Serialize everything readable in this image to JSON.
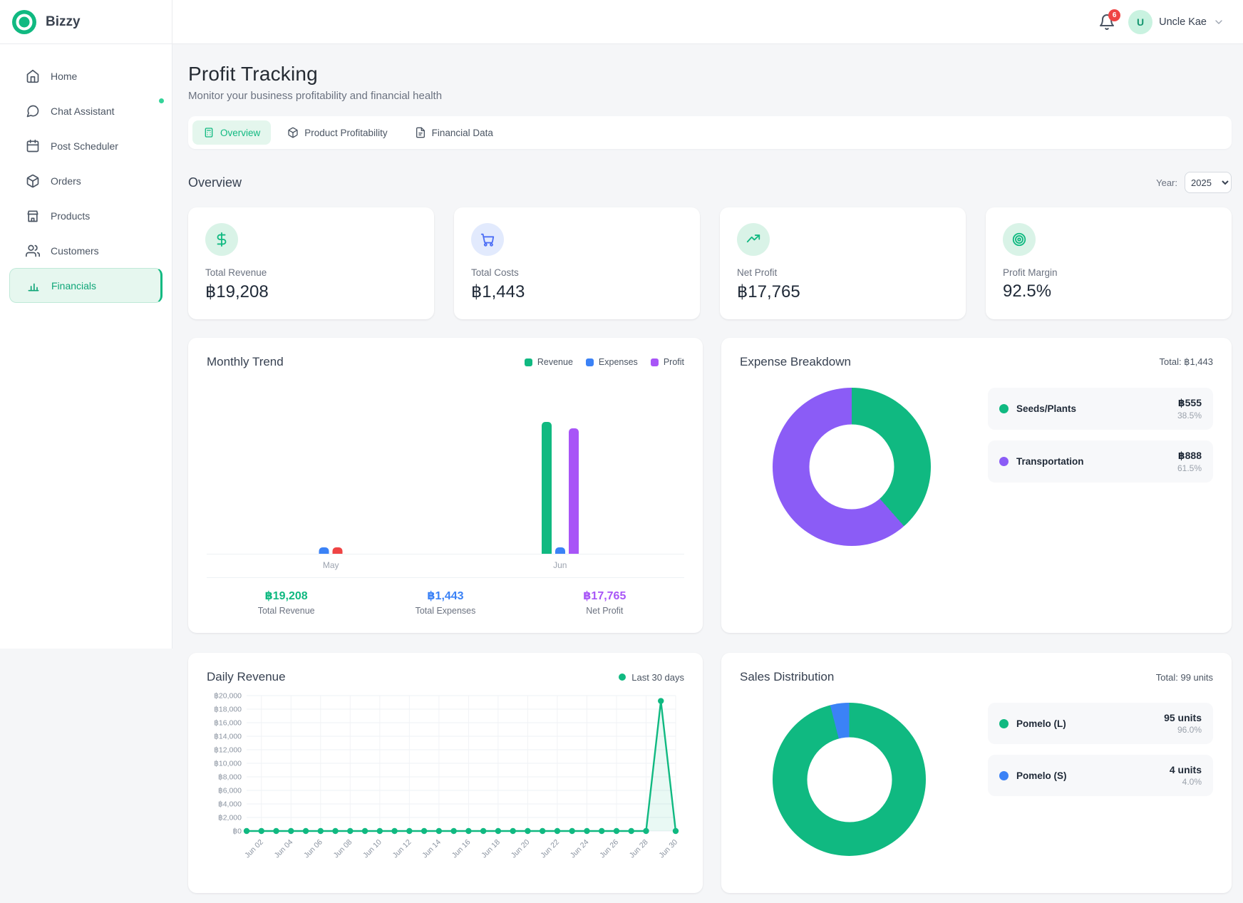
{
  "brand": {
    "name": "Bizzy"
  },
  "topbar": {
    "notification_count": "6",
    "user_initial": "U",
    "user_name": "Uncle Kae"
  },
  "sidebar": {
    "items": [
      {
        "label": "Home",
        "icon": "home-icon"
      },
      {
        "label": "Chat Assistant",
        "icon": "chat-icon",
        "status_dot": true
      },
      {
        "label": "Post Scheduler",
        "icon": "calendar-icon"
      },
      {
        "label": "Orders",
        "icon": "package-icon"
      },
      {
        "label": "Products",
        "icon": "store-icon"
      },
      {
        "label": "Customers",
        "icon": "users-icon"
      },
      {
        "label": "Financials",
        "icon": "bar-chart-icon",
        "active": true
      }
    ]
  },
  "page": {
    "title": "Profit Tracking",
    "subtitle": "Monitor your business profitability and financial health"
  },
  "tabs": [
    {
      "label": "Overview",
      "active": true
    },
    {
      "label": "Product Profitability",
      "active": false
    },
    {
      "label": "Financial Data",
      "active": false
    }
  ],
  "section": {
    "heading": "Overview",
    "year_label": "Year:",
    "year_value": "2025"
  },
  "stats": [
    {
      "label": "Total Revenue",
      "value": "฿19,208",
      "icon": "dollar-icon",
      "tint": "green"
    },
    {
      "label": "Total Costs",
      "value": "฿1,443",
      "icon": "cart-icon",
      "tint": "blue"
    },
    {
      "label": "Net Profit",
      "value": "฿17,765",
      "icon": "trending-up-icon",
      "tint": "green"
    },
    {
      "label": "Profit Margin",
      "value": "92.5%",
      "icon": "target-icon",
      "tint": "green"
    }
  ],
  "colors": {
    "primary_green": "#10b981",
    "blue": "#3b82f6",
    "purple": "#a855f7",
    "donut_purple": "#8b5cf6",
    "red": "#ef4444"
  },
  "chart_data": [
    {
      "id": "monthly_trend",
      "type": "bar",
      "title": "Monthly Trend",
      "categories": [
        "May",
        "Jun"
      ],
      "series": [
        {
          "name": "Revenue",
          "color": "#10b981",
          "values": [
            0,
            19208
          ]
        },
        {
          "name": "Expenses",
          "color": "#3b82f6",
          "values": [
            555,
            888
          ]
        },
        {
          "name": "Profit",
          "color": "#a855f7",
          "negative_color": "#ef4444",
          "values": [
            -555,
            18320
          ]
        }
      ],
      "ylim": [
        0,
        19208
      ],
      "legend_position": "top-right",
      "footer": [
        {
          "value": "฿19,208",
          "label": "Total Revenue",
          "color": "#10b981"
        },
        {
          "value": "฿1,443",
          "label": "Total Expenses",
          "color": "#3b82f6"
        },
        {
          "value": "฿17,765",
          "label": "Net Profit",
          "color": "#a855f7"
        }
      ]
    },
    {
      "id": "expense_breakdown",
      "type": "donut",
      "title": "Expense Breakdown",
      "total_label": "Total: ฿1,443",
      "slices": [
        {
          "name": "Seeds/Plants",
          "value": "฿555",
          "pct": 38.5,
          "pct_label": "38.5%",
          "color": "#10b981"
        },
        {
          "name": "Transportation",
          "value": "฿888",
          "pct": 61.5,
          "pct_label": "61.5%",
          "color": "#8b5cf6"
        }
      ]
    },
    {
      "id": "daily_revenue",
      "type": "line",
      "title": "Daily Revenue",
      "legend": "Last 30 days",
      "color": "#10b981",
      "days": [
        "Jun 01",
        "Jun 02",
        "Jun 03",
        "Jun 04",
        "Jun 05",
        "Jun 06",
        "Jun 07",
        "Jun 08",
        "Jun 09",
        "Jun 10",
        "Jun 11",
        "Jun 12",
        "Jun 13",
        "Jun 14",
        "Jun 15",
        "Jun 16",
        "Jun 17",
        "Jun 18",
        "Jun 19",
        "Jun 20",
        "Jun 21",
        "Jun 22",
        "Jun 23",
        "Jun 24",
        "Jun 25",
        "Jun 26",
        "Jun 27",
        "Jun 28",
        "Jun 29",
        "Jun 30"
      ],
      "values": [
        0,
        0,
        0,
        0,
        0,
        0,
        0,
        0,
        0,
        0,
        0,
        0,
        0,
        0,
        0,
        0,
        0,
        0,
        0,
        0,
        0,
        0,
        0,
        0,
        0,
        0,
        0,
        0,
        19208,
        0
      ],
      "ylim": [
        0,
        20000
      ],
      "ytick_step": 2000,
      "y_ticks": [
        "฿0",
        "฿2,000",
        "฿4,000",
        "฿6,000",
        "฿8,000",
        "฿10,000",
        "฿12,000",
        "฿14,000",
        "฿16,000",
        "฿18,000",
        "฿20,000"
      ],
      "x_tick_labels": [
        "Jun 02",
        "Jun 04",
        "Jun 06",
        "Jun 08",
        "Jun 10",
        "Jun 12",
        "Jun 14",
        "Jun 16",
        "Jun 18",
        "Jun 20",
        "Jun 22",
        "Jun 24",
        "Jun 26",
        "Jun 28",
        "Jun 30"
      ],
      "grid": true
    },
    {
      "id": "sales_distribution",
      "type": "donut",
      "title": "Sales Distribution",
      "total_label": "Total: 99 units",
      "slices": [
        {
          "name": "Pomelo (L)",
          "value": "95 units",
          "pct": 96.0,
          "pct_label": "96.0%",
          "color": "#10b981"
        },
        {
          "name": "Pomelo (S)",
          "value": "4 units",
          "pct": 4.0,
          "pct_label": "4.0%",
          "color": "#3b82f6"
        }
      ]
    }
  ]
}
